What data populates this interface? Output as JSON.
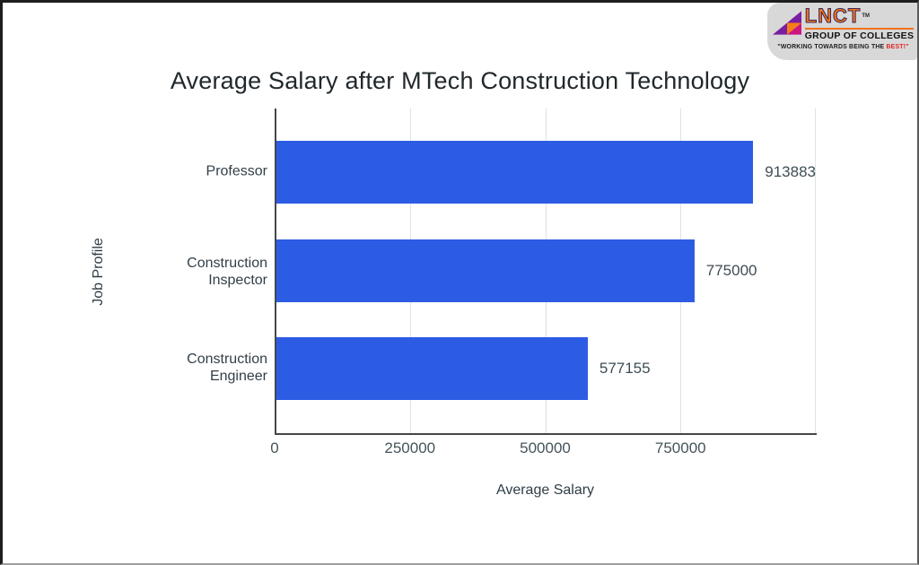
{
  "logo": {
    "brand": "LNCT",
    "trademark": "TM",
    "subtitle": "GROUP OF COLLEGES",
    "tagline_prefix": "\"WORKING TOWARDS BEING THE ",
    "tagline_highlight": "BEST!\"",
    "colors": {
      "brand_orange": "#f2711c",
      "highlight_red": "#e02424",
      "card_bg": "#d8d8d8",
      "mark_purple": "#7a1fa2",
      "mark_magenta": "#cb1680",
      "mark_orange": "#f57f17"
    }
  },
  "chart_data": {
    "type": "bar",
    "orientation": "horizontal",
    "title": "Average Salary after MTech Construction Technology",
    "categories": [
      "Professor",
      "Construction Inspector",
      "Construction Engineer"
    ],
    "values": [
      913883,
      775000,
      577155
    ],
    "value_labels": [
      "913883",
      "775000",
      "577155"
    ],
    "xlabel": "Average Salary",
    "ylabel": "Job Profile",
    "x_ticks": [
      0,
      250000,
      500000,
      750000
    ],
    "x_tick_labels": [
      "0",
      "250000",
      "500000",
      "750000"
    ],
    "xlim": [
      0,
      1000000
    ],
    "grid": true,
    "legend": "none",
    "bar_color": "#2d5ce4",
    "gridline_color": "#dce4e3",
    "axis_line_color": "#43474a"
  }
}
